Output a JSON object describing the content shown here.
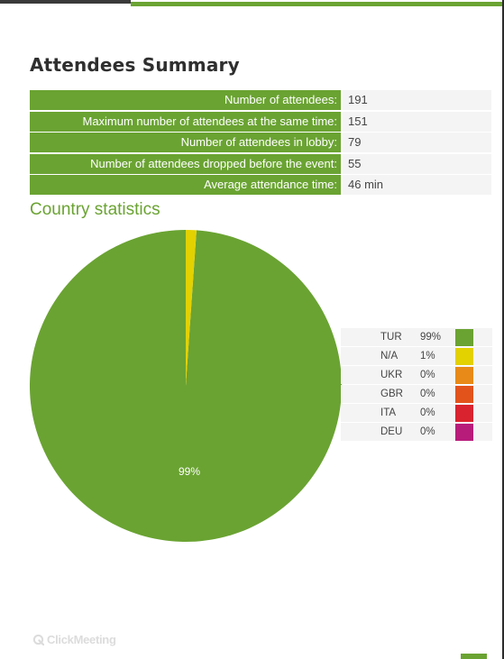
{
  "title": "Attendees Summary",
  "summary": [
    {
      "label": "Number of attendees:",
      "value": "191"
    },
    {
      "label": "Maximum number of attendees at the same time:",
      "value": "151"
    },
    {
      "label": "Number of attendees in lobby:",
      "value": "79"
    },
    {
      "label": "Number of attendees dropped before the event:",
      "value": "55"
    },
    {
      "label": "Average attendance time:",
      "value": "46 min"
    }
  ],
  "section_title": "Country statistics",
  "chart_data": {
    "type": "pie",
    "title": "",
    "slice_label": "99%",
    "slices": [
      {
        "label": "TUR",
        "pct_text": "99%",
        "value": 98.9,
        "color": "#6aa332"
      },
      {
        "label": "N/A",
        "pct_text": "1%",
        "value": 1.1,
        "color": "#e3d100"
      },
      {
        "label": "UKR",
        "pct_text": "0%",
        "value": 0,
        "color": "#e88a17"
      },
      {
        "label": "GBR",
        "pct_text": "0%",
        "value": 0,
        "color": "#e2531c"
      },
      {
        "label": "ITA",
        "pct_text": "0%",
        "value": 0,
        "color": "#d9232e"
      },
      {
        "label": "DEU",
        "pct_text": "0%",
        "value": 0,
        "color": "#b81c7a"
      }
    ]
  },
  "logo_text": "ClickMeeting"
}
